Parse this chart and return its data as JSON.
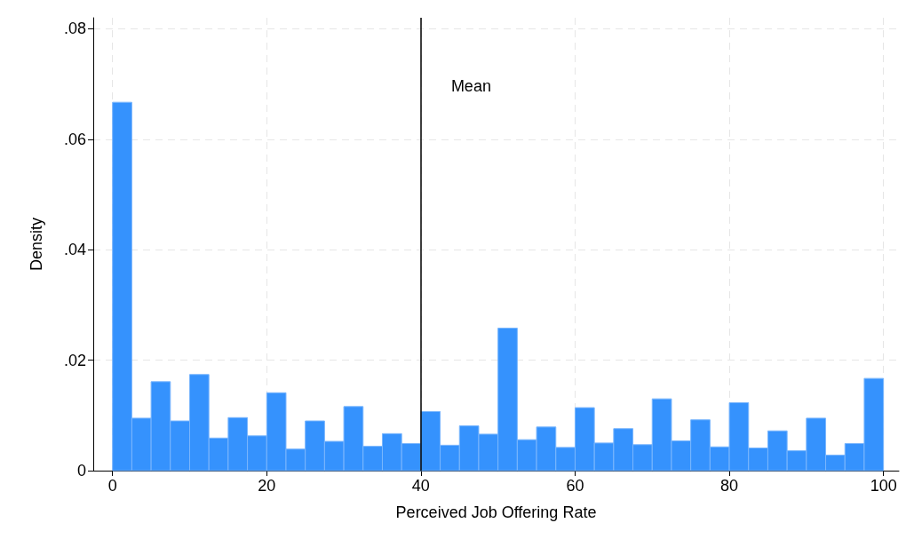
{
  "chart_data": {
    "type": "histogram",
    "xlabel": "Perceived Job Offering Rate",
    "ylabel": "Density",
    "bins": [
      0,
      2.5,
      5,
      7.5,
      10,
      12.5,
      15,
      17.5,
      20,
      22.5,
      25,
      27.5,
      30,
      32.5,
      35,
      37.5,
      40,
      42.5,
      45,
      47.5,
      50,
      52.5,
      55,
      57.5,
      60,
      62.5,
      65,
      67.5,
      70,
      72.5,
      75,
      77.5,
      80,
      82.5,
      85,
      87.5,
      90,
      92.5,
      95,
      97.5,
      100
    ],
    "values": [
      0.0667,
      0.0095,
      0.0161,
      0.009,
      0.0174,
      0.0059,
      0.0096,
      0.0063,
      0.0141,
      0.0039,
      0.009,
      0.0053,
      0.0116,
      0.0044,
      0.0067,
      0.0049,
      0.0107,
      0.0046,
      0.0081,
      0.0066,
      0.0258,
      0.0056,
      0.0079,
      0.0042,
      0.0114,
      0.005,
      0.0076,
      0.0047,
      0.013,
      0.0054,
      0.0092,
      0.0043,
      0.0123,
      0.0041,
      0.0072,
      0.0036,
      0.0095,
      0.0028,
      0.0049,
      0.0167
    ],
    "color": "#3592fd",
    "xlim": [
      -2.5,
      102
    ],
    "xticks": [
      0,
      20,
      40,
      60,
      80,
      100
    ],
    "ylim": [
      0,
      0.082
    ],
    "yticks": [
      0,
      {
        "value": 0.02,
        "label": ".02"
      },
      {
        "value": 0.04,
        "label": ".04"
      },
      {
        "value": 0.06,
        "label": ".06"
      },
      {
        "value": 0.08,
        "label": ".08"
      }
    ],
    "ref_lines": [
      {
        "axis": "x",
        "value": 40,
        "label": "Mean",
        "color": "#000000"
      }
    ],
    "grid": true
  }
}
